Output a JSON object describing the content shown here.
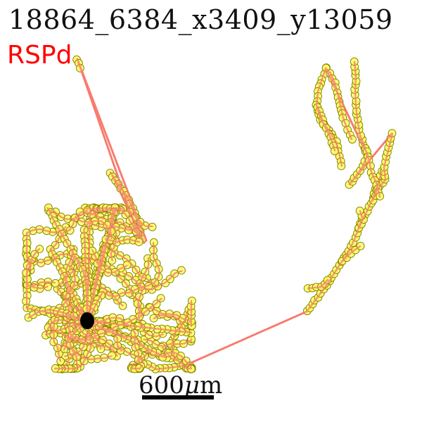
{
  "figure": {
    "title": "18864_6384_x3409_y13059",
    "region_label": "RSPd",
    "scale_bar": {
      "value": "600",
      "unit_prefix": "μ",
      "unit": "m"
    },
    "colors": {
      "node_fill": "#ffff66",
      "node_stroke": "#888800",
      "edge": "#f87b6e",
      "soma": "#000000",
      "region_label": "#ff0000"
    }
  }
}
